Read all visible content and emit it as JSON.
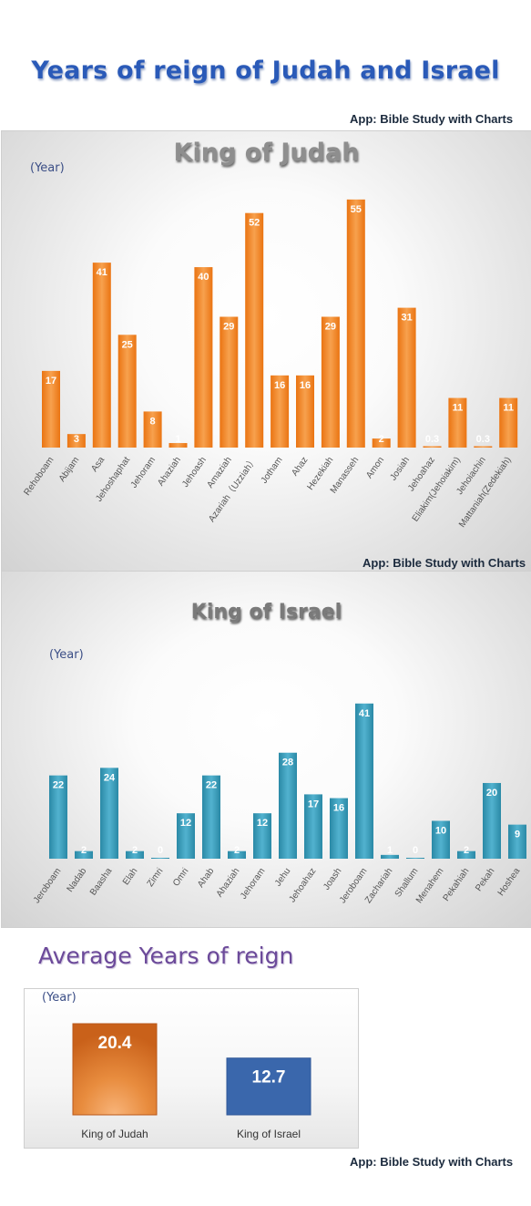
{
  "header": {
    "title": "Years of reign of Judah and Israel",
    "credit": "App: Bible Study with Charts"
  },
  "colors": {
    "title": "#2a5ab8",
    "judah_bar": "#f07d1e",
    "israel_bar": "#3196b4",
    "avg_judah": "#e07420",
    "avg_israel": "#3a67ac"
  },
  "chart_data": [
    {
      "type": "bar",
      "title": "King of Judah",
      "ylabel": "(Year)",
      "ylim": [
        0,
        58
      ],
      "categories": [
        "Rehoboam",
        "Abijam",
        "Asa",
        "Jehoshaphat",
        "Jehoram",
        "Ahaziah",
        "Jehoash",
        "Amaziah",
        "Azariah（Uzziah）",
        "Jotham",
        "Ahaz",
        "Hezekiah",
        "Manasseh",
        "Amon",
        "Josiah",
        "Jehoahaz",
        "Eliakim(Jehoiakim)",
        "Jehoiachin",
        "Mattaniah(Zedekiah)"
      ],
      "values": [
        17,
        3,
        41,
        25,
        8,
        1,
        40,
        29,
        52,
        16,
        16,
        29,
        55,
        2,
        31,
        0.3,
        11,
        0.3,
        11
      ],
      "credit": "App: Bible Study with Charts"
    },
    {
      "type": "bar",
      "title": "King of Israel",
      "ylabel": "(Year)",
      "ylim": [
        0,
        46
      ],
      "categories": [
        "Jeroboam",
        "Nadab",
        "Baasha",
        "Elah",
        "Zimri",
        "Omri",
        "Ahab",
        "Ahaziah",
        "Jehoram",
        "Jehu",
        "Jehoahaz",
        "Joash",
        "Jeroboam",
        "Zachariah",
        "Shallum",
        "Menahem",
        "Pekahiah",
        "Pekah",
        "Hoshea"
      ],
      "values": [
        22,
        2,
        24,
        2,
        0,
        12,
        22,
        2,
        12,
        28,
        17,
        16,
        41,
        1,
        0,
        10,
        2,
        20,
        9
      ]
    },
    {
      "type": "bar",
      "title": "Average Years of reign",
      "ylabel": "(Year)",
      "ylim": [
        0,
        25
      ],
      "categories": [
        "King of Judah",
        "King of Israel"
      ],
      "values": [
        20.4,
        12.7
      ]
    }
  ]
}
